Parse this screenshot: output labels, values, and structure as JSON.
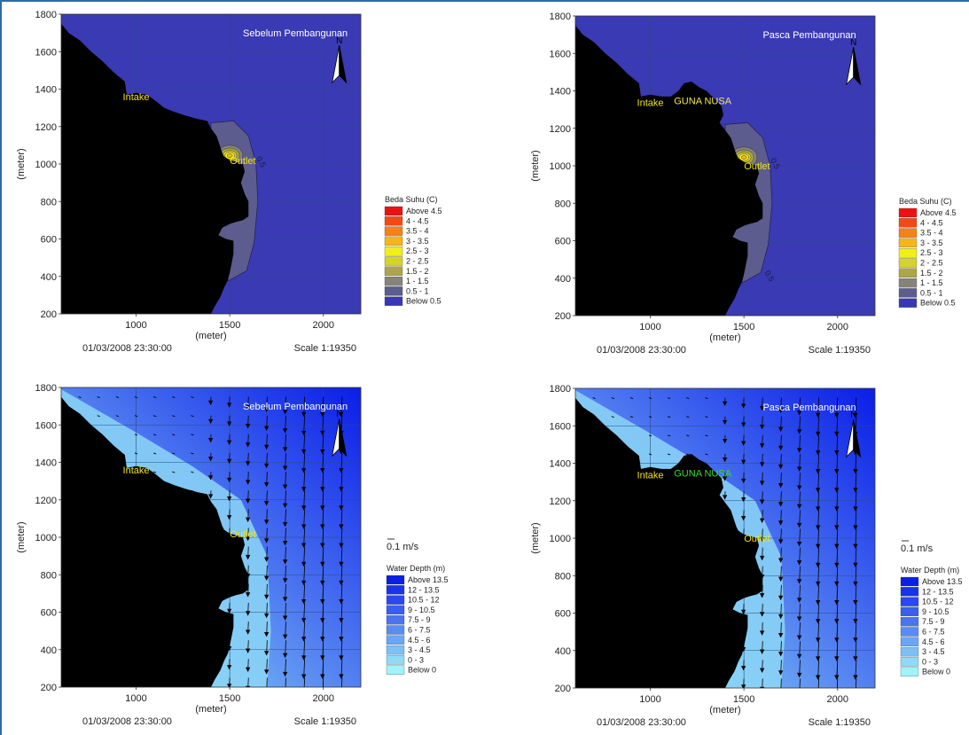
{
  "colors": {
    "sea": "#3a3ab4",
    "land": "#000000",
    "grid": "#2a4a88",
    "label_yellow": "#f2e21a",
    "label_green": "#33dd33",
    "frame": "#2d6ba3"
  },
  "temp_legend": {
    "title": "Beda Suhu (C)",
    "entries": [
      {
        "label": "Above 4.5",
        "color": "#ee1111"
      },
      {
        "label": "4 - 4.5",
        "color": "#f24a14"
      },
      {
        "label": "3.5 - 4",
        "color": "#f58214"
      },
      {
        "label": "3 - 3.5",
        "color": "#f6b61a"
      },
      {
        "label": "2.5 - 3",
        "color": "#f2ee1c"
      },
      {
        "label": "2 - 2.5",
        "color": "#d4d22c"
      },
      {
        "label": "1.5 - 2",
        "color": "#aca648"
      },
      {
        "label": "1 - 1.5",
        "color": "#86847a"
      },
      {
        "label": "0.5 - 1",
        "color": "#5c5c8e"
      },
      {
        "label": "Below 0.5",
        "color": "#3838b4"
      }
    ]
  },
  "depth_legend": {
    "title": "Water Depth (m)",
    "vector_label": "0.1 m/s",
    "entries": [
      {
        "label": "Above 13.5",
        "color": "#0a1ee6"
      },
      {
        "label": "12 - 13.5",
        "color": "#1a32ea"
      },
      {
        "label": "10.5 - 12",
        "color": "#2a48ec"
      },
      {
        "label": "9 - 10.5",
        "color": "#3a5eee"
      },
      {
        "label": "7.5 - 9",
        "color": "#4a74f0"
      },
      {
        "label": "6 - 7.5",
        "color": "#5a8cf2"
      },
      {
        "label": "4.5 - 6",
        "color": "#6aa6f4"
      },
      {
        "label": "3 - 4.5",
        "color": "#7cc0f6"
      },
      {
        "label": "0 - 3",
        "color": "#8edaf8"
      },
      {
        "label": "Below 0",
        "color": "#9ef4fa"
      }
    ]
  },
  "chart_data": [
    {
      "type": "heatmap",
      "panel": "top-left",
      "title": "Sebelum Pembangunan",
      "xlabel": "(meter)",
      "ylabel": "(meter)",
      "xlim": [
        600,
        2200
      ],
      "ylim": [
        200,
        1800
      ],
      "xticks": [
        "1000",
        "1500",
        "2000"
      ],
      "yticks": [
        "200",
        "400",
        "600",
        "800",
        "1000",
        "1200",
        "1400",
        "1600",
        "1800"
      ],
      "date": "01/03/2008 23:30:00",
      "scale": "Scale 1:19350",
      "labels": [
        {
          "text": "Intake",
          "x": 1000,
          "y": 1340
        },
        {
          "text": "Outlet",
          "x": 1570,
          "y": 1000
        }
      ],
      "contour_labels": [
        "0.5"
      ],
      "north": "N"
    },
    {
      "type": "heatmap",
      "panel": "top-right",
      "title": "Pasca Pembangunan",
      "xlabel": "(meter)",
      "ylabel": "(meter)",
      "xlim": [
        600,
        2200
      ],
      "ylim": [
        200,
        1800
      ],
      "xticks": [
        "1000",
        "1500",
        "2000"
      ],
      "yticks": [
        "200",
        "400",
        "600",
        "800",
        "1000",
        "1200",
        "1400",
        "1600",
        "1800"
      ],
      "date": "01/03/2008 23:30:00",
      "scale": "Scale 1:19350",
      "labels": [
        {
          "text": "Intake",
          "x": 1000,
          "y": 1320
        },
        {
          "text": "GUNA NUSA",
          "x": 1280,
          "y": 1330
        },
        {
          "text": "Outlet",
          "x": 1570,
          "y": 980
        }
      ],
      "contour_labels": [
        "0.5",
        "0.5"
      ],
      "north": "N"
    },
    {
      "type": "heatmap",
      "panel": "bottom-left",
      "title": "Sebelum Pembangunan",
      "xlabel": "(meter)",
      "ylabel": "(meter)",
      "xlim": [
        600,
        2200
      ],
      "ylim": [
        200,
        1800
      ],
      "xticks": [
        "1000",
        "1500",
        "2000"
      ],
      "yticks": [
        "200",
        "400",
        "600",
        "800",
        "1000",
        "1200",
        "1400",
        "1600",
        "1800"
      ],
      "date": "01/03/2008 23:30:00",
      "scale": "Scale 1:19350",
      "labels": [
        {
          "text": "Intake",
          "x": 1000,
          "y": 1340
        },
        {
          "text": "Outlet",
          "x": 1570,
          "y": 1000
        }
      ],
      "north": "N"
    },
    {
      "type": "heatmap",
      "panel": "bottom-right",
      "title": "Pasca Pembangunan",
      "xlabel": "(meter)",
      "ylabel": "(meter)",
      "xlim": [
        600,
        2200
      ],
      "ylim": [
        200,
        1800
      ],
      "xticks": [
        "1000",
        "1500",
        "2000"
      ],
      "yticks": [
        "200",
        "400",
        "600",
        "800",
        "1000",
        "1200",
        "1400",
        "1600",
        "1800"
      ],
      "date": "01/03/2008 23:30:00",
      "scale": "Scale 1:19350",
      "labels": [
        {
          "text": "Intake",
          "x": 1000,
          "y": 1320
        },
        {
          "text": "GUNA NUSA",
          "x": 1280,
          "y": 1330
        },
        {
          "text": "Outlet",
          "x": 1570,
          "y": 980
        }
      ],
      "north": "N"
    }
  ]
}
